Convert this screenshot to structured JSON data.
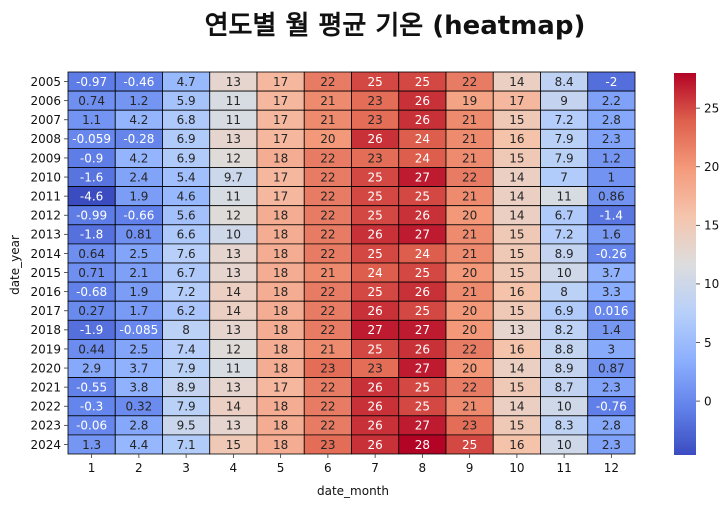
{
  "chart_data": {
    "type": "heatmap",
    "title": "연도별 월 평균 기온 (heatmap)",
    "xlabel": "date_month",
    "ylabel": "date_year",
    "x": [
      "1",
      "2",
      "3",
      "4",
      "5",
      "6",
      "7",
      "8",
      "9",
      "10",
      "11",
      "12"
    ],
    "y": [
      "2005",
      "2006",
      "2007",
      "2008",
      "2009",
      "2010",
      "2011",
      "2012",
      "2013",
      "2014",
      "2015",
      "2016",
      "2017",
      "2018",
      "2019",
      "2020",
      "2021",
      "2022",
      "2023",
      "2024"
    ],
    "values": [
      [
        -0.97,
        -0.46,
        4.7,
        13,
        17,
        22,
        25,
        25,
        22,
        14,
        8.4,
        -2
      ],
      [
        0.74,
        1.2,
        5.9,
        11,
        17,
        21,
        23,
        26,
        19,
        17,
        9,
        2.2
      ],
      [
        1.1,
        4.2,
        6.8,
        11,
        17,
        21,
        23,
        26,
        21,
        15,
        7.2,
        2.8
      ],
      [
        -0.059,
        -0.28,
        6.9,
        13,
        17,
        20,
        26,
        24,
        21,
        16,
        7.9,
        2.3
      ],
      [
        -0.9,
        4.2,
        6.9,
        12,
        18,
        22,
        23,
        24,
        21,
        15,
        7.9,
        1.2
      ],
      [
        -1.6,
        2.4,
        5.4,
        9.7,
        17,
        22,
        25,
        27,
        22,
        14,
        7,
        1
      ],
      [
        -4.6,
        1.9,
        4.6,
        11,
        17,
        22,
        25,
        25,
        21,
        14,
        11,
        0.86
      ],
      [
        -0.99,
        -0.66,
        5.6,
        12,
        18,
        22,
        25,
        26,
        20,
        14,
        6.7,
        -1.4
      ],
      [
        -1.8,
        0.81,
        6.6,
        10,
        18,
        22,
        26,
        27,
        21,
        15,
        7.2,
        1.6
      ],
      [
        0.64,
        2.5,
        7.6,
        13,
        18,
        22,
        25,
        24,
        21,
        15,
        8.9,
        -0.26
      ],
      [
        0.71,
        2.1,
        6.7,
        13,
        18,
        21,
        24,
        25,
        20,
        15,
        10,
        3.7
      ],
      [
        -0.68,
        1.9,
        7.2,
        14,
        18,
        22,
        25,
        26,
        21,
        16,
        8,
        3.3
      ],
      [
        0.27,
        1.7,
        6.2,
        14,
        18,
        22,
        26,
        25,
        20,
        15,
        6.9,
        0.016
      ],
      [
        -1.9,
        -0.085,
        8,
        13,
        18,
        22,
        27,
        27,
        20,
        13,
        8.2,
        1.4
      ],
      [
        0.44,
        2.5,
        7.4,
        12,
        18,
        21,
        25,
        26,
        22,
        16,
        8.8,
        3
      ],
      [
        2.9,
        3.7,
        7.9,
        11,
        18,
        23,
        23,
        27,
        20,
        14,
        8.9,
        0.87
      ],
      [
        -0.55,
        3.8,
        8.9,
        13,
        17,
        22,
        26,
        25,
        22,
        15,
        8.7,
        2.3
      ],
      [
        -0.3,
        0.32,
        7.9,
        14,
        18,
        22,
        26,
        25,
        21,
        14,
        10,
        -0.76
      ],
      [
        -0.06,
        2.8,
        9.5,
        13,
        18,
        22,
        26,
        27,
        23,
        15,
        8.3,
        2.8
      ],
      [
        1.3,
        4.4,
        7.1,
        15,
        18,
        23,
        26,
        28,
        25,
        16,
        10,
        2.3
      ]
    ],
    "colormap": "coolwarm",
    "vmin": -4.6,
    "vmax": 28,
    "colorbar_ticks": [
      "0",
      "5",
      "10",
      "15",
      "20",
      "25"
    ],
    "grid": true
  }
}
